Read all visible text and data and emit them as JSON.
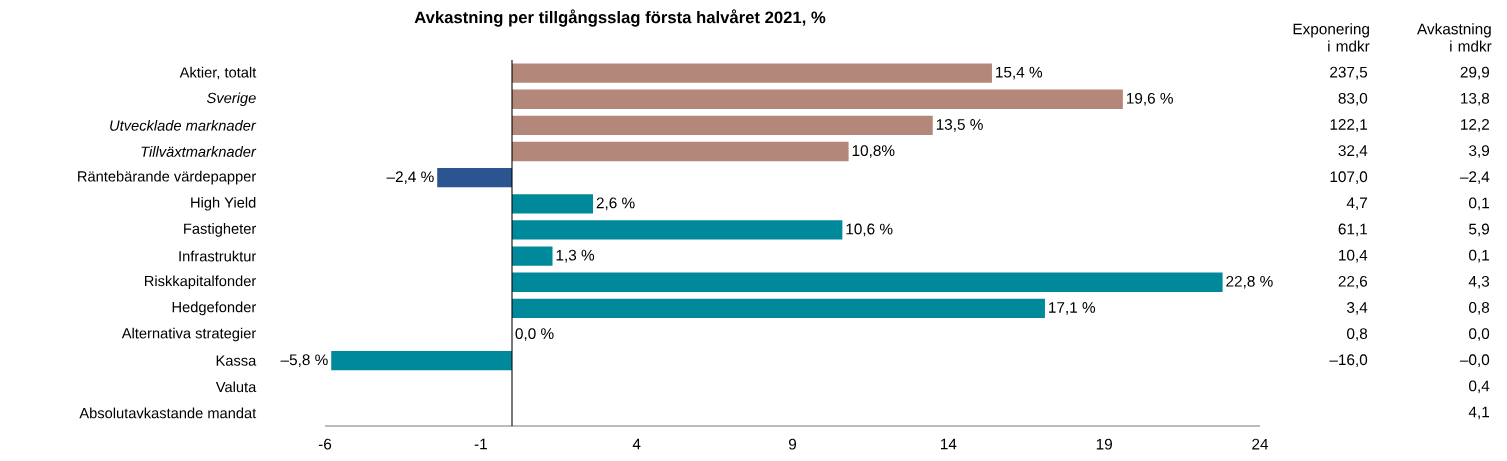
{
  "chart_data": {
    "type": "bar",
    "orientation": "horizontal",
    "title": "Avkastning per tillgångsslag första halvåret 2021, %",
    "categories": [
      "Aktier, totalt",
      "*Sverige*",
      "*Utvecklade marknader*",
      "*Tillväxtmarknader*",
      "Räntebärande värdepapper",
      "High Yield",
      "Fastigheter",
      "Infrastruktur",
      "Riskkapitalfonder",
      "Hedgefonder",
      "Alternativa strategier",
      "Kassa",
      "Valuta",
      "Absolutavkastande mandat"
    ],
    "values": [
      15.4,
      19.6,
      13.5,
      10.8,
      -2.4,
      2.6,
      10.6,
      1.3,
      22.8,
      17.1,
      0.0,
      -5.8,
      null,
      null
    ],
    "value_labels": [
      "15,4 %",
      "19,6 %",
      "13,5 %",
      "10,8%",
      "–2,4 %",
      "2,6 %",
      "10,6 %",
      "1,3 %",
      "22,8 %",
      "17,1 %",
      "0,0 %",
      "–5,8 %",
      null,
      null
    ],
    "colors": [
      "#b3887a",
      "#b3887a",
      "#b3887a",
      "#b3887a",
      "#2a5590",
      "#00899a",
      "#00899a",
      "#00899a",
      "#00899a",
      "#00899a",
      "#00899a",
      "#00899a",
      "#00899a",
      "#00899a"
    ],
    "xlim": [
      -6,
      24
    ],
    "xticks": [
      -6,
      -1,
      4,
      9,
      14,
      19,
      24
    ],
    "ref_lines": [
      {
        "axis": "x",
        "value": 0
      }
    ],
    "annotations": [
      "Exponering i mdkr",
      "Avkastning i mdkr",
      "237,5",
      "83,0",
      "122,1",
      "32,4",
      "107,0",
      "4,7",
      "61,1",
      "10,4",
      "22,6",
      "3,4",
      "0,8",
      "–16,0",
      "29,9",
      "13,8",
      "12,2",
      "3,9",
      "–2,4",
      "0,1",
      "5,9",
      "0,1",
      "4,3",
      "0,8",
      "0,0",
      "–0,0",
      "0,4",
      "4,1"
    ]
  }
}
